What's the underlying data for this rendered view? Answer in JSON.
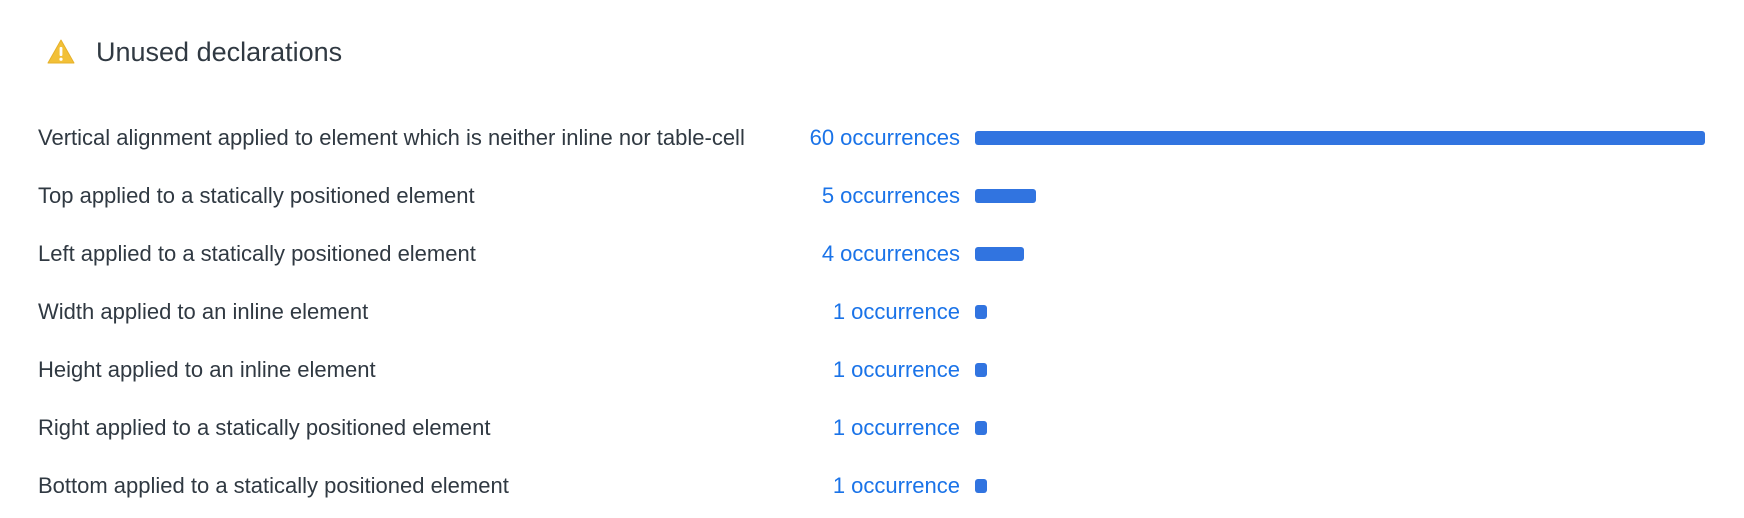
{
  "header": {
    "title": "Unused declarations",
    "icon": "warning-icon",
    "icon_color": "#f2c037"
  },
  "colors": {
    "link": "#1a73e8",
    "bar": "#3174e0"
  },
  "rows": [
    {
      "label": "Vertical alignment applied to element which is neither inline nor table-cell",
      "count_label": "60 occurrences",
      "count": 60
    },
    {
      "label": "Top applied to a statically positioned element",
      "count_label": "5 occurrences",
      "count": 5
    },
    {
      "label": "Left applied to a statically positioned element",
      "count_label": "4 occurrences",
      "count": 4
    },
    {
      "label": "Width applied to an inline element",
      "count_label": "1 occurrence",
      "count": 1
    },
    {
      "label": "Height applied to an inline element",
      "count_label": "1 occurrence",
      "count": 1
    },
    {
      "label": "Right applied to a statically positioned element",
      "count_label": "1 occurrence",
      "count": 1
    },
    {
      "label": "Bottom applied to a statically positioned element",
      "count_label": "1 occurrence",
      "count": 1
    }
  ]
}
